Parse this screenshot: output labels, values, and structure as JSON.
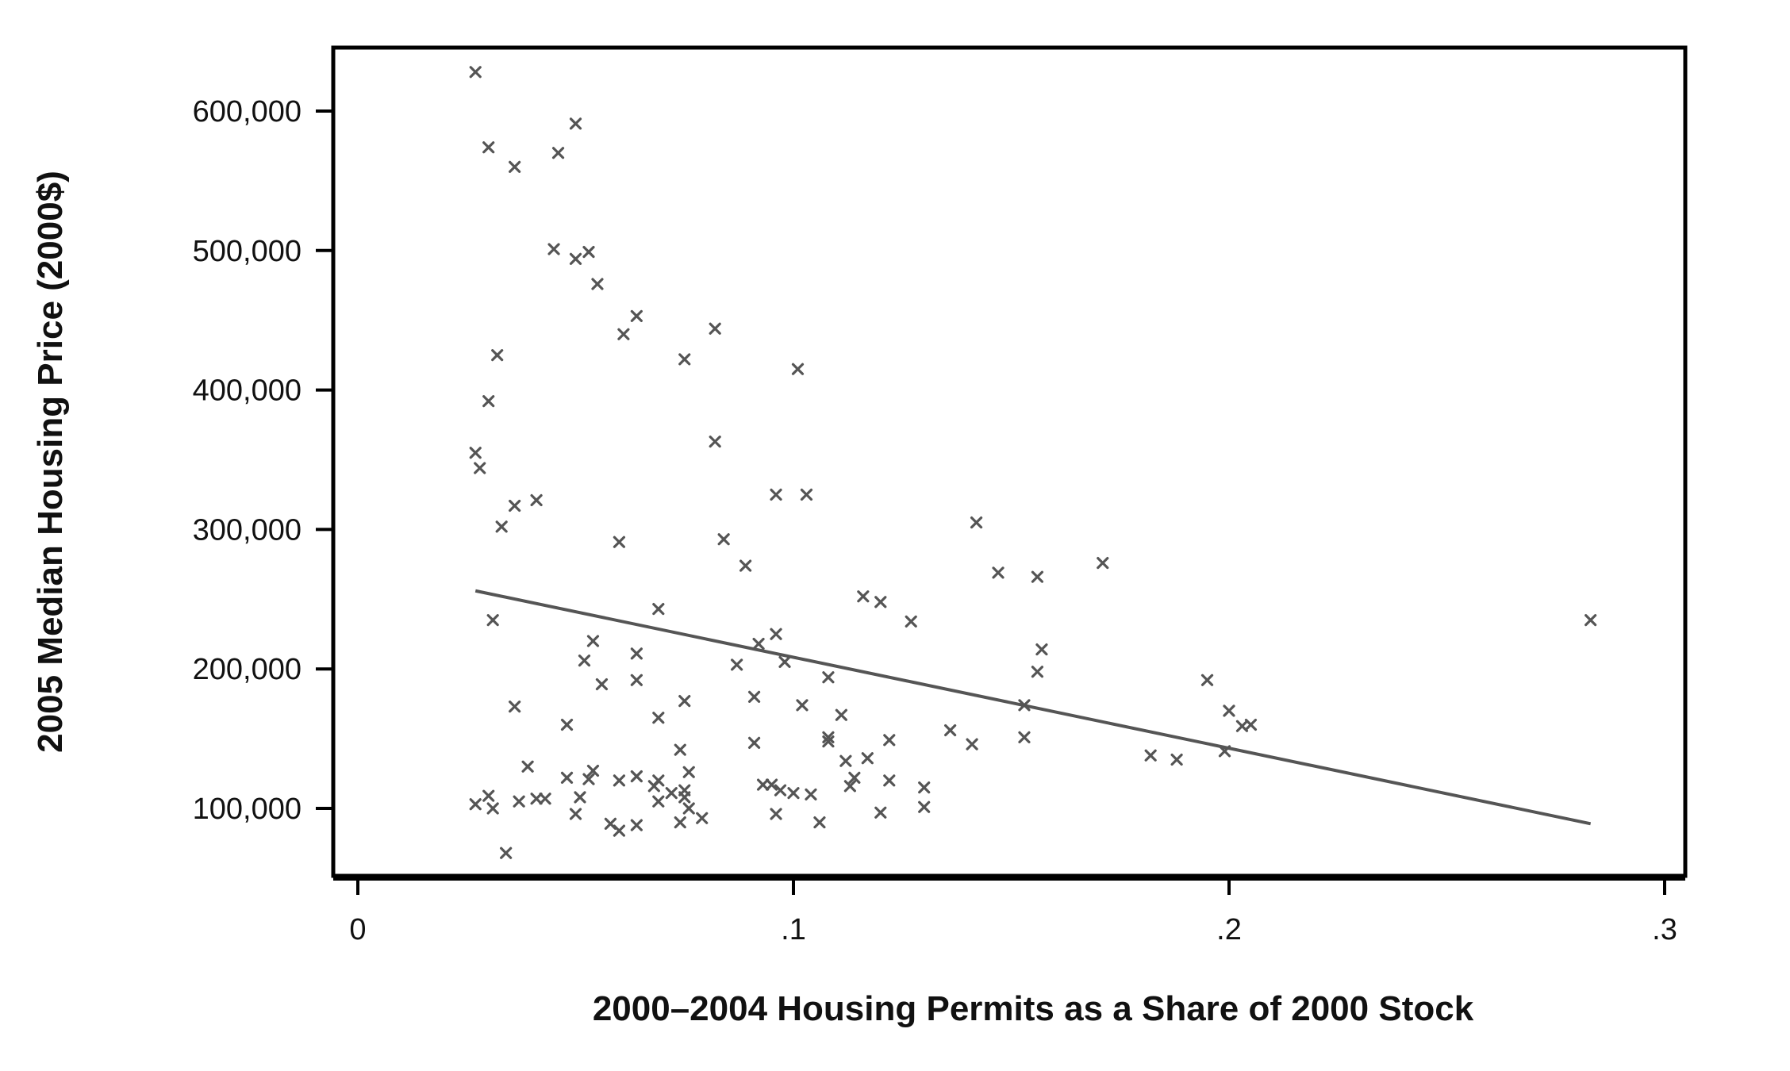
{
  "chart_data": {
    "type": "scatter",
    "xlabel": "2000–2004 Housing Permits as a Share of 2000 Stock",
    "ylabel": "2005 Median Housing Price (2000$)",
    "xlim": [
      -0.006,
      0.3
    ],
    "ylim": [
      50000,
      640000
    ],
    "x_ticks": [
      0,
      0.1,
      0.2,
      0.3
    ],
    "x_tick_labels": [
      "0",
      ".1",
      ".2",
      ".3"
    ],
    "y_ticks": [
      100000,
      200000,
      300000,
      400000,
      500000,
      600000
    ],
    "y_tick_labels": [
      "100,000",
      "200,000",
      "300,000",
      "400,000",
      "500,000",
      "600,000"
    ],
    "grid": false,
    "legend": "none",
    "marker": "x",
    "colors": {
      "marker": "#555555",
      "fit_line": "#555555",
      "frame": "#000000"
    },
    "fit_line": {
      "x": [
        0.027,
        0.283
      ],
      "y": [
        256000,
        89000
      ]
    },
    "points": [
      {
        "x": 0.027,
        "y": 628000
      },
      {
        "x": 0.03,
        "y": 574000
      },
      {
        "x": 0.036,
        "y": 560000
      },
      {
        "x": 0.046,
        "y": 570000
      },
      {
        "x": 0.05,
        "y": 591000
      },
      {
        "x": 0.045,
        "y": 501000
      },
      {
        "x": 0.05,
        "y": 494000
      },
      {
        "x": 0.053,
        "y": 499000
      },
      {
        "x": 0.055,
        "y": 476000
      },
      {
        "x": 0.064,
        "y": 453000
      },
      {
        "x": 0.061,
        "y": 440000
      },
      {
        "x": 0.082,
        "y": 444000
      },
      {
        "x": 0.075,
        "y": 422000
      },
      {
        "x": 0.101,
        "y": 415000
      },
      {
        "x": 0.032,
        "y": 425000
      },
      {
        "x": 0.03,
        "y": 392000
      },
      {
        "x": 0.027,
        "y": 355000
      },
      {
        "x": 0.028,
        "y": 344000
      },
      {
        "x": 0.082,
        "y": 363000
      },
      {
        "x": 0.036,
        "y": 317000
      },
      {
        "x": 0.041,
        "y": 321000
      },
      {
        "x": 0.033,
        "y": 302000
      },
      {
        "x": 0.096,
        "y": 325000
      },
      {
        "x": 0.103,
        "y": 325000
      },
      {
        "x": 0.06,
        "y": 291000
      },
      {
        "x": 0.084,
        "y": 293000
      },
      {
        "x": 0.089,
        "y": 274000
      },
      {
        "x": 0.142,
        "y": 305000
      },
      {
        "x": 0.147,
        "y": 269000
      },
      {
        "x": 0.156,
        "y": 266000
      },
      {
        "x": 0.171,
        "y": 276000
      },
      {
        "x": 0.031,
        "y": 235000
      },
      {
        "x": 0.069,
        "y": 243000
      },
      {
        "x": 0.116,
        "y": 252000
      },
      {
        "x": 0.12,
        "y": 248000
      },
      {
        "x": 0.127,
        "y": 234000
      },
      {
        "x": 0.283,
        "y": 235000
      },
      {
        "x": 0.054,
        "y": 220000
      },
      {
        "x": 0.052,
        "y": 206000
      },
      {
        "x": 0.064,
        "y": 211000
      },
      {
        "x": 0.092,
        "y": 218000
      },
      {
        "x": 0.096,
        "y": 225000
      },
      {
        "x": 0.098,
        "y": 205000
      },
      {
        "x": 0.087,
        "y": 203000
      },
      {
        "x": 0.056,
        "y": 189000
      },
      {
        "x": 0.064,
        "y": 192000
      },
      {
        "x": 0.108,
        "y": 194000
      },
      {
        "x": 0.157,
        "y": 214000
      },
      {
        "x": 0.156,
        "y": 198000
      },
      {
        "x": 0.195,
        "y": 192000
      },
      {
        "x": 0.036,
        "y": 173000
      },
      {
        "x": 0.075,
        "y": 177000
      },
      {
        "x": 0.069,
        "y": 165000
      },
      {
        "x": 0.091,
        "y": 180000
      },
      {
        "x": 0.102,
        "y": 174000
      },
      {
        "x": 0.111,
        "y": 167000
      },
      {
        "x": 0.153,
        "y": 174000
      },
      {
        "x": 0.2,
        "y": 170000
      },
      {
        "x": 0.203,
        "y": 159000
      },
      {
        "x": 0.205,
        "y": 160000
      },
      {
        "x": 0.048,
        "y": 160000
      },
      {
        "x": 0.074,
        "y": 142000
      },
      {
        "x": 0.091,
        "y": 147000
      },
      {
        "x": 0.108,
        "y": 151000
      },
      {
        "x": 0.108,
        "y": 148000
      },
      {
        "x": 0.122,
        "y": 149000
      },
      {
        "x": 0.136,
        "y": 156000
      },
      {
        "x": 0.141,
        "y": 146000
      },
      {
        "x": 0.153,
        "y": 151000
      },
      {
        "x": 0.182,
        "y": 138000
      },
      {
        "x": 0.188,
        "y": 135000
      },
      {
        "x": 0.199,
        "y": 141000
      },
      {
        "x": 0.039,
        "y": 130000
      },
      {
        "x": 0.054,
        "y": 127000
      },
      {
        "x": 0.053,
        "y": 121000
      },
      {
        "x": 0.048,
        "y": 122000
      },
      {
        "x": 0.06,
        "y": 120000
      },
      {
        "x": 0.064,
        "y": 123000
      },
      {
        "x": 0.068,
        "y": 116000
      },
      {
        "x": 0.069,
        "y": 120000
      },
      {
        "x": 0.076,
        "y": 126000
      },
      {
        "x": 0.075,
        "y": 113000
      },
      {
        "x": 0.075,
        "y": 108000
      },
      {
        "x": 0.093,
        "y": 117000
      },
      {
        "x": 0.095,
        "y": 117000
      },
      {
        "x": 0.097,
        "y": 113000
      },
      {
        "x": 0.1,
        "y": 111000
      },
      {
        "x": 0.104,
        "y": 110000
      },
      {
        "x": 0.112,
        "y": 134000
      },
      {
        "x": 0.114,
        "y": 122000
      },
      {
        "x": 0.113,
        "y": 116000
      },
      {
        "x": 0.117,
        "y": 136000
      },
      {
        "x": 0.122,
        "y": 120000
      },
      {
        "x": 0.13,
        "y": 115000
      },
      {
        "x": 0.027,
        "y": 103000
      },
      {
        "x": 0.03,
        "y": 109000
      },
      {
        "x": 0.031,
        "y": 100000
      },
      {
        "x": 0.037,
        "y": 105000
      },
      {
        "x": 0.041,
        "y": 107000
      },
      {
        "x": 0.043,
        "y": 107000
      },
      {
        "x": 0.051,
        "y": 108000
      },
      {
        "x": 0.05,
        "y": 96000
      },
      {
        "x": 0.069,
        "y": 105000
      },
      {
        "x": 0.072,
        "y": 111000
      },
      {
        "x": 0.076,
        "y": 100000
      },
      {
        "x": 0.058,
        "y": 89000
      },
      {
        "x": 0.06,
        "y": 84000
      },
      {
        "x": 0.064,
        "y": 88000
      },
      {
        "x": 0.074,
        "y": 90000
      },
      {
        "x": 0.079,
        "y": 93000
      },
      {
        "x": 0.096,
        "y": 96000
      },
      {
        "x": 0.106,
        "y": 90000
      },
      {
        "x": 0.12,
        "y": 97000
      },
      {
        "x": 0.13,
        "y": 101000
      },
      {
        "x": 0.034,
        "y": 68000
      }
    ]
  }
}
